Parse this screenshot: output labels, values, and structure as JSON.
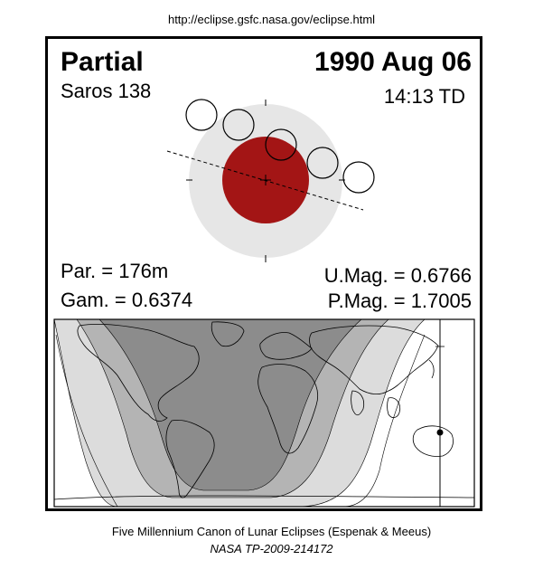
{
  "header": {
    "url": "http://eclipse.gsfc.nasa.gov/eclipse.html"
  },
  "eclipse": {
    "type": "Partial",
    "date": "1990 Aug 06",
    "saros": "Saros 138",
    "time": "14:13 TD",
    "partial_duration": "Par. = 176m",
    "gamma": "Gam. = 0.6374",
    "umbral_magnitude": "U.Mag. = 0.6766",
    "penumbral_magnitude": "P.Mag. = 1.7005"
  },
  "colors": {
    "umbra": "#a31515",
    "penumbra": "#e6e6e6",
    "map_night": "#8c8c8c",
    "map_partial": "#b4b4b4",
    "map_penumbral": "#dcdcdc",
    "map_day": "#ffffff"
  },
  "footer": {
    "line1": "Five Millennium Canon of Lunar Eclipses (Espenak & Meeus)",
    "line2": "NASA TP-2009-214172"
  }
}
